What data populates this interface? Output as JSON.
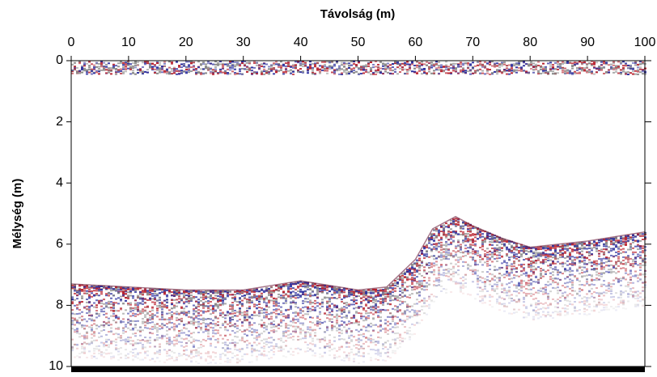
{
  "chart_data": {
    "type": "radargram",
    "xlabel": "Távolság (m)",
    "ylabel": "Mélység (m)",
    "xlim": [
      0,
      100
    ],
    "xticks": [
      0,
      10,
      20,
      30,
      40,
      50,
      60,
      70,
      80,
      90,
      100
    ],
    "ylim": [
      0,
      10
    ],
    "yticks": [
      0,
      2,
      4,
      6,
      8,
      10
    ],
    "y_inverted": true,
    "x": [
      0,
      10,
      20,
      30,
      40,
      50,
      55,
      60,
      63,
      67,
      70,
      75,
      80,
      90,
      100
    ],
    "values": [
      7.3,
      7.4,
      7.5,
      7.5,
      7.2,
      7.5,
      7.4,
      6.5,
      5.5,
      5.1,
      5.4,
      5.8,
      6.1,
      5.9,
      5.6
    ],
    "colors": [
      "#b8202c",
      "#2c2f9e",
      "#888888"
    ]
  }
}
